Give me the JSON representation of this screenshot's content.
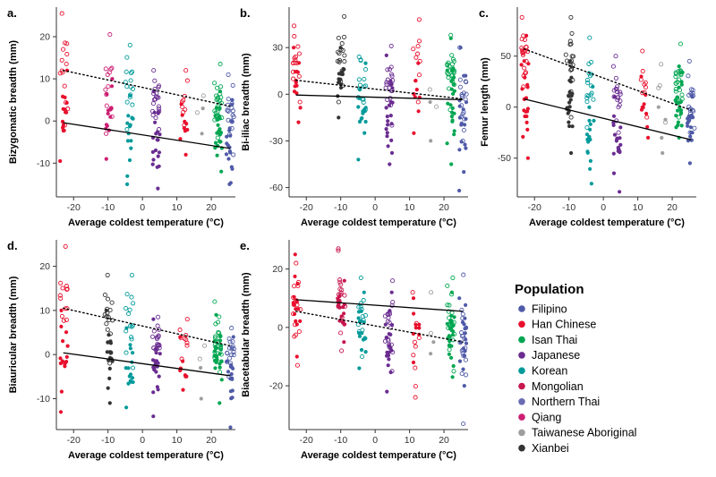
{
  "legend": {
    "title": "Population",
    "entries": [
      {
        "name": "Filipino",
        "color": "#4f5aa8"
      },
      {
        "name": "Han Chinese",
        "color": "#e8102d"
      },
      {
        "name": "Isan Thai",
        "color": "#00a651"
      },
      {
        "name": "Japanese",
        "color": "#6a2c91"
      },
      {
        "name": "Korean",
        "color": "#009a9a"
      },
      {
        "name": "Mongolian",
        "color": "#c8174e"
      },
      {
        "name": "Northern Thai",
        "color": "#6b6bb3"
      },
      {
        "name": "Qiang",
        "color": "#cc1f73"
      },
      {
        "name": "Taiwanese Aboriginal",
        "color": "#9e9e9e"
      },
      {
        "name": "Xianbei",
        "color": "#333333"
      }
    ]
  },
  "chart_data": [
    {
      "id": "a",
      "letter": "a.",
      "type": "scatter",
      "xlabel": "Average coldest temperature (°C)",
      "ylabel": "Bizygomatic breadth (mm)",
      "xlim": [
        -25,
        27
      ],
      "ylim": [
        -18,
        27
      ],
      "xticks": [
        -20,
        -10,
        0,
        10,
        20
      ],
      "yticks": [
        -10,
        0,
        10,
        20
      ],
      "fit_solid": {
        "x": [
          -23,
          25.5
        ],
        "y": [
          -0.4,
          -6.5
        ]
      },
      "fit_dotted": {
        "x": [
          -23,
          25.5
        ],
        "y": [
          12,
          3.5
        ]
      },
      "groups": [
        {
          "x": -22.8,
          "pop": "Han Chinese",
          "filled": [
            -9.5,
            12
          ],
          "open": [
            -1,
            25.5
          ],
          "n": 28
        },
        {
          "x": -9.8,
          "pop": "Qiang",
          "filled": [
            -9,
            10
          ],
          "open": [
            -3,
            20.5
          ],
          "n": 26
        },
        {
          "x": -3.8,
          "pop": "Korean",
          "filled": [
            -15,
            6
          ],
          "open": [
            -2,
            18
          ],
          "n": 30
        },
        {
          "x": 4,
          "pop": "Japanese",
          "filled": [
            -16,
            7
          ],
          "open": [
            -2,
            12
          ],
          "n": 40
        },
        {
          "x": 12,
          "pop": "Han Chinese",
          "filled": [
            -8,
            4
          ],
          "open": [
            -1,
            12
          ],
          "n": 18
        },
        {
          "x": 17,
          "pop": "Taiwanese Aboriginal",
          "filled": [
            -3,
            3
          ],
          "open": [
            2,
            6
          ],
          "n": 4
        },
        {
          "x": 22,
          "pop": "Isan Thai",
          "filled": [
            -12,
            7
          ],
          "open": [
            -4,
            13.5
          ],
          "n": 45
        },
        {
          "x": 25.5,
          "pop": "Filipino",
          "filled": [
            -15,
            5
          ],
          "open": [
            -8,
            11
          ],
          "n": 35
        }
      ]
    },
    {
      "id": "b",
      "letter": "b.",
      "type": "scatter",
      "xlabel": "Average coldest temperature (°C)",
      "ylabel": "Bi-iliac breadth (mm)",
      "xlim": [
        -25,
        27
      ],
      "ylim": [
        -66,
        56
      ],
      "xticks": [
        -20,
        -10,
        0,
        10,
        20
      ],
      "yticks": [
        -60,
        -30,
        0,
        30
      ],
      "fit_solid": {
        "x": [
          -23,
          25.5
        ],
        "y": [
          -0.5,
          -3.5
        ]
      },
      "fit_dotted": {
        "x": [
          -23,
          25.5
        ],
        "y": [
          9,
          -3
        ]
      },
      "groups": [
        {
          "x": -22.8,
          "pop": "Han Chinese",
          "filled": [
            -18,
            30
          ],
          "open": [
            -5,
            44
          ],
          "n": 30
        },
        {
          "x": -9.8,
          "pop": "Xianbei",
          "filled": [
            -15,
            30
          ],
          "open": [
            -5,
            50
          ],
          "n": 34
        },
        {
          "x": -3.8,
          "pop": "Korean",
          "filled": [
            -42,
            20
          ],
          "open": [
            -10,
            24
          ],
          "n": 30
        },
        {
          "x": 4,
          "pop": "Japanese",
          "filled": [
            -45,
            25
          ],
          "open": [
            -20,
            31
          ],
          "n": 40
        },
        {
          "x": 12,
          "pop": "Han Chinese",
          "filled": [
            -25,
            20
          ],
          "open": [
            -5,
            48
          ],
          "n": 18
        },
        {
          "x": 17,
          "pop": "Taiwanese Aboriginal",
          "filled": [
            -30,
            -5
          ],
          "open": [
            -8,
            3
          ],
          "n": 4
        },
        {
          "x": 22,
          "pop": "Isan Thai",
          "filled": [
            -45,
            36
          ],
          "open": [
            -10,
            38
          ],
          "n": 45
        },
        {
          "x": 25.5,
          "pop": "Filipino",
          "filled": [
            -62,
            30
          ],
          "open": [
            -30,
            30
          ],
          "n": 35
        }
      ]
    },
    {
      "id": "c",
      "letter": "c.",
      "type": "scatter",
      "xlabel": "Average coldest temperature (°C)",
      "ylabel": "Femur length (mm)",
      "xlim": [
        -25,
        27
      ],
      "ylim": [
        -88,
        98
      ],
      "xticks": [
        -20,
        -10,
        0,
        10,
        20
      ],
      "yticks": [
        -50,
        0,
        50
      ],
      "fit_solid": {
        "x": [
          -23,
          25.5
        ],
        "y": [
          8,
          -32
        ]
      },
      "fit_dotted": {
        "x": [
          -23,
          25.5
        ],
        "y": [
          57,
          -3
        ]
      },
      "groups": [
        {
          "x": -22.8,
          "pop": "Han Chinese",
          "filled": [
            -50,
            70
          ],
          "open": [
            20,
            88
          ],
          "n": 40
        },
        {
          "x": -9.8,
          "pop": "Xianbei",
          "filled": [
            -45,
            45
          ],
          "open": [
            -10,
            88
          ],
          "n": 40
        },
        {
          "x": -3.8,
          "pop": "Korean",
          "filled": [
            -75,
            20
          ],
          "open": [
            -20,
            68
          ],
          "n": 34
        },
        {
          "x": 4,
          "pop": "Japanese",
          "filled": [
            -83,
            10
          ],
          "open": [
            -25,
            50
          ],
          "n": 40
        },
        {
          "x": 12,
          "pop": "Han Chinese",
          "filled": [
            -30,
            30
          ],
          "open": [
            -10,
            55
          ],
          "n": 18
        },
        {
          "x": 17,
          "pop": "Taiwanese Aboriginal",
          "filled": [
            -45,
            0
          ],
          "open": [
            -15,
            42
          ],
          "n": 8
        },
        {
          "x": 22,
          "pop": "Isan Thai",
          "filled": [
            -30,
            40
          ],
          "open": [
            -10,
            62
          ],
          "n": 45
        },
        {
          "x": 25.5,
          "pop": "Filipino",
          "filled": [
            -55,
            10
          ],
          "open": [
            -25,
            45
          ],
          "n": 35
        }
      ]
    },
    {
      "id": "d",
      "letter": "d.",
      "type": "scatter",
      "xlabel": "Average coldest temperature (°C)",
      "ylabel": "Biauricular breadth (mm)",
      "xlim": [
        -25,
        27
      ],
      "ylim": [
        -17,
        26
      ],
      "xticks": [
        -20,
        -10,
        0,
        10,
        20
      ],
      "yticks": [
        -10,
        0,
        10,
        20
      ],
      "fit_solid": {
        "x": [
          -23,
          25.5
        ],
        "y": [
          0.4,
          -4.8
        ]
      },
      "fit_dotted": {
        "x": [
          -23,
          25.5
        ],
        "y": [
          10.5,
          2
        ]
      },
      "groups": [
        {
          "x": -22.8,
          "pop": "Han Chinese",
          "filled": [
            -13,
            10
          ],
          "open": [
            -2,
            24.5
          ],
          "n": 28
        },
        {
          "x": -9.8,
          "pop": "Xianbei",
          "filled": [
            -11,
            10
          ],
          "open": [
            -2,
            18
          ],
          "n": 34
        },
        {
          "x": -3.8,
          "pop": "Korean",
          "filled": [
            -12,
            6
          ],
          "open": [
            -3,
            18
          ],
          "n": 30
        },
        {
          "x": 4,
          "pop": "Japanese",
          "filled": [
            -14,
            8
          ],
          "open": [
            -2,
            8.5
          ],
          "n": 40
        },
        {
          "x": 12,
          "pop": "Han Chinese",
          "filled": [
            -8,
            4
          ],
          "open": [
            -1,
            8
          ],
          "n": 18
        },
        {
          "x": 17,
          "pop": "Taiwanese Aboriginal",
          "filled": [
            -10,
            -3
          ],
          "open": [
            -1,
            2
          ],
          "n": 3
        },
        {
          "x": 22,
          "pop": "Isan Thai",
          "filled": [
            -11,
            9
          ],
          "open": [
            -4,
            12
          ],
          "n": 45
        },
        {
          "x": 25.5,
          "pop": "Filipino",
          "filled": [
            -16.5,
            4
          ],
          "open": [
            -5,
            6
          ],
          "n": 35
        }
      ]
    },
    {
      "id": "e",
      "letter": "e.",
      "type": "scatter",
      "xlabel": "Average coldest temperature (°C)",
      "ylabel": "Biacetabular breadth (mm)",
      "xlim": [
        -25,
        27
      ],
      "ylim": [
        -35,
        30
      ],
      "xticks": [
        -20,
        -10,
        0,
        10,
        20
      ],
      "yticks": [
        -20,
        0,
        20
      ],
      "fit_solid": {
        "x": [
          -23,
          25.5
        ],
        "y": [
          9.5,
          5.5
        ]
      },
      "fit_dotted": {
        "x": [
          -23,
          25.5
        ],
        "y": [
          5.5,
          -5
        ]
      },
      "groups": [
        {
          "x": -22.8,
          "pop": "Han Chinese",
          "filled": [
            -10,
            25
          ],
          "open": [
            -13,
            22
          ],
          "n": 30
        },
        {
          "x": -9.8,
          "pop": "Mongolian",
          "filled": [
            -5,
            16
          ],
          "open": [
            -8,
            27
          ],
          "n": 36
        },
        {
          "x": -3.8,
          "pop": "Korean",
          "filled": [
            -14,
            12
          ],
          "open": [
            -10,
            17
          ],
          "n": 30
        },
        {
          "x": 4,
          "pop": "Japanese",
          "filled": [
            -22,
            12
          ],
          "open": [
            -15,
            16
          ],
          "n": 40
        },
        {
          "x": 12,
          "pop": "Han Chinese",
          "filled": [
            -12,
            10
          ],
          "open": [
            -24,
            12
          ],
          "n": 18
        },
        {
          "x": 17,
          "pop": "Taiwanese Aboriginal",
          "filled": [
            -9,
            -5
          ],
          "open": [
            -2,
            12
          ],
          "n": 3
        },
        {
          "x": 22,
          "pop": "Isan Thai",
          "filled": [
            -17,
            12
          ],
          "open": [
            -15,
            17
          ],
          "n": 45
        },
        {
          "x": 25.5,
          "pop": "Filipino",
          "filled": [
            -20,
            10
          ],
          "open": [
            -33,
            18
          ],
          "n": 35
        }
      ]
    }
  ]
}
